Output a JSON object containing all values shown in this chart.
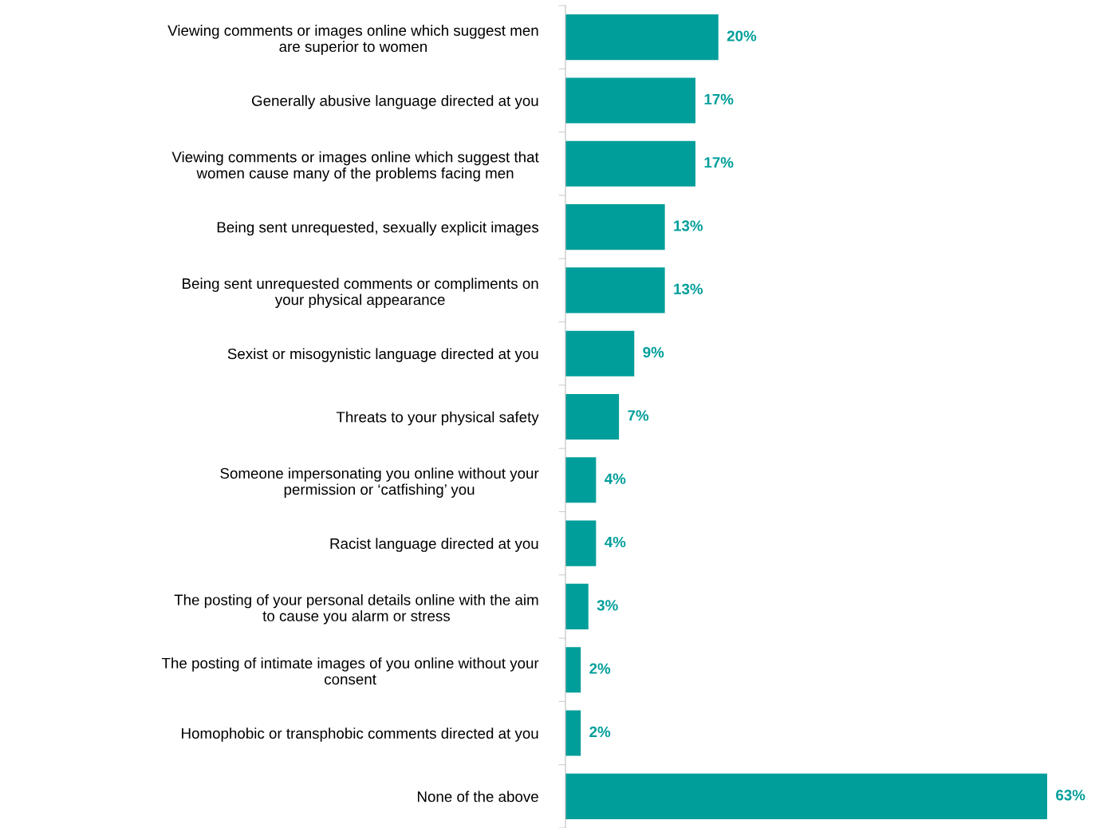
{
  "chart_data": {
    "type": "bar",
    "orientation": "horizontal",
    "categories": [
      "Viewing comments or images online which suggest men\nare superior to women",
      "Generally abusive language directed at you",
      "Viewing comments or images online which suggest that\nwomen cause many of the problems facing men",
      "Being sent unrequested, sexually explicit images",
      "Being sent unrequested comments or compliments on\nyour physical appearance",
      "Sexist or misogynistic language directed at you",
      "Threats to your physical safety",
      "Someone impersonating you online without your\npermission or ‘catfishing’ you",
      "Racist language directed at you",
      "The posting of your personal details online with the aim\nto cause you alarm or stress",
      "The posting of intimate images of you online without your\nconsent",
      "Homophobic or transphobic comments directed at you",
      "None of the above"
    ],
    "values": [
      20,
      17,
      17,
      13,
      13,
      9,
      7,
      4,
      4,
      3,
      2,
      2,
      63
    ],
    "value_labels": [
      "20%",
      "17%",
      "17%",
      "13%",
      "13%",
      "9%",
      "7%",
      "4%",
      "4%",
      "3%",
      "2%",
      "2%",
      "63%"
    ],
    "color": "#009e9a",
    "grid": false,
    "legend": false
  }
}
